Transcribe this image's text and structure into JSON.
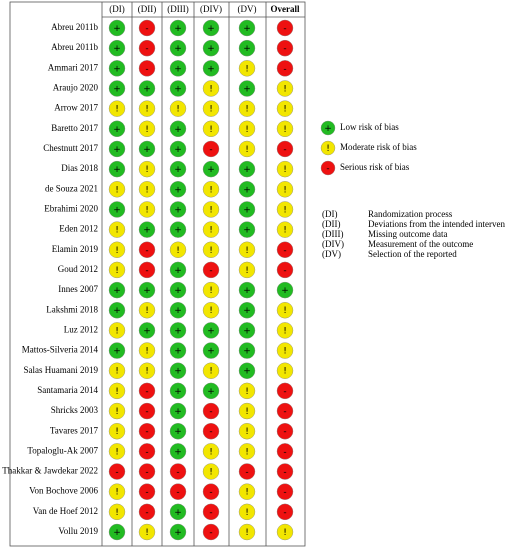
{
  "columns": [
    "(DI)",
    "(DII)",
    "(DIII)",
    "(DIV)",
    "(DV)",
    "Overall"
  ],
  "studies": [
    {
      "name": "Abreu 2011b",
      "judgments": [
        "+",
        "-",
        "+",
        "+",
        "+",
        "-"
      ]
    },
    {
      "name": "Abreu 2011b",
      "judgments": [
        "+",
        "-",
        "+",
        "+",
        "+",
        "-"
      ]
    },
    {
      "name": "Ammari 2017",
      "judgments": [
        "+",
        "-",
        "+",
        "+",
        "!",
        "-"
      ]
    },
    {
      "name": "Araujo 2020",
      "judgments": [
        "+",
        "+",
        "+",
        "!",
        "+",
        "!"
      ]
    },
    {
      "name": "Arrow 2017",
      "judgments": [
        "!",
        "!",
        "!",
        "!",
        "!",
        "!"
      ]
    },
    {
      "name": "Baretto 2017",
      "judgments": [
        "+",
        "!",
        "+",
        "!",
        "!",
        "!"
      ]
    },
    {
      "name": "Chestnutt 2017",
      "judgments": [
        "+",
        "+",
        "+",
        "-",
        "!",
        "-"
      ]
    },
    {
      "name": "Dias 2018",
      "judgments": [
        "+",
        "!",
        "+",
        "+",
        "+",
        "!"
      ]
    },
    {
      "name": "de Souza 2021",
      "judgments": [
        "!",
        "!",
        "+",
        "!",
        "+",
        "!"
      ]
    },
    {
      "name": "Ebrahimi 2020",
      "judgments": [
        "+",
        "!",
        "+",
        "!",
        "+",
        "!"
      ]
    },
    {
      "name": "Eden 2012",
      "judgments": [
        "!",
        "+",
        "+",
        "!",
        "+",
        "!"
      ]
    },
    {
      "name": "Elamin 2019",
      "judgments": [
        "!",
        "-",
        "!",
        "!",
        "!",
        "-"
      ]
    },
    {
      "name": "Goud 2012",
      "judgments": [
        "!",
        "-",
        "+",
        "-",
        "!",
        "-"
      ]
    },
    {
      "name": "Innes 2007",
      "judgments": [
        "+",
        "+",
        "+",
        "!",
        "+",
        "+"
      ]
    },
    {
      "name": "Lakshmi 2018",
      "judgments": [
        "+",
        "!",
        "+",
        "!",
        "+",
        "!"
      ]
    },
    {
      "name": "Luz 2012",
      "judgments": [
        "!",
        "+",
        "+",
        "+",
        "+",
        "!"
      ]
    },
    {
      "name": "Mattos-Silveria 2014",
      "judgments": [
        "+",
        "!",
        "+",
        "+",
        "+",
        "!"
      ]
    },
    {
      "name": "Salas Huamani 2019",
      "judgments": [
        "!",
        "!",
        "+",
        "!",
        "+",
        "!"
      ]
    },
    {
      "name": "Santamaria 2014",
      "judgments": [
        "!",
        "-",
        "+",
        "+",
        "!",
        "-"
      ]
    },
    {
      "name": "Shricks 2003",
      "judgments": [
        "!",
        "-",
        "+",
        "-",
        "!",
        "-"
      ]
    },
    {
      "name": "Tavares 2017",
      "judgments": [
        "!",
        "-",
        "+",
        "-",
        "!",
        "-"
      ]
    },
    {
      "name": "Topaloglu-Ak 2007",
      "judgments": [
        "!",
        "-",
        "+",
        "!",
        "!",
        "-"
      ]
    },
    {
      "name": "Thakkar & Jawdekar 2022",
      "judgments": [
        "-",
        "-",
        "-",
        "!",
        "-",
        "-"
      ]
    },
    {
      "name": "Von Bochove 2006",
      "judgments": [
        "!",
        "-",
        "-",
        "-",
        "!",
        "-"
      ]
    },
    {
      "name": "Van de Hoef 2012",
      "judgments": [
        "!",
        "-",
        "+",
        "-",
        "!",
        "-"
      ]
    },
    {
      "name": "Vollu 2019",
      "judgments": [
        "+",
        "!",
        "+",
        "-",
        "!",
        "!"
      ]
    }
  ],
  "legend": [
    {
      "symbol": "+",
      "label": "Low risk of bias",
      "color": "#22bb22"
    },
    {
      "symbol": "!",
      "label": "Moderate risk of bias",
      "color": "#f2e600"
    },
    {
      "symbol": "-",
      "label": "Serious risk of bias",
      "color": "#ee1111"
    }
  ],
  "key": [
    {
      "code": "(DI)",
      "text": "Randomization process"
    },
    {
      "code": "(DII)",
      "text": "Deviations from the intended interventions"
    },
    {
      "code": "(DIII)",
      "text": "Missing outcome data"
    },
    {
      "code": "(DIV)",
      "text": "Measurement of the outcome"
    },
    {
      "code": "(DV)",
      "text": "Selection of the reported"
    }
  ]
}
